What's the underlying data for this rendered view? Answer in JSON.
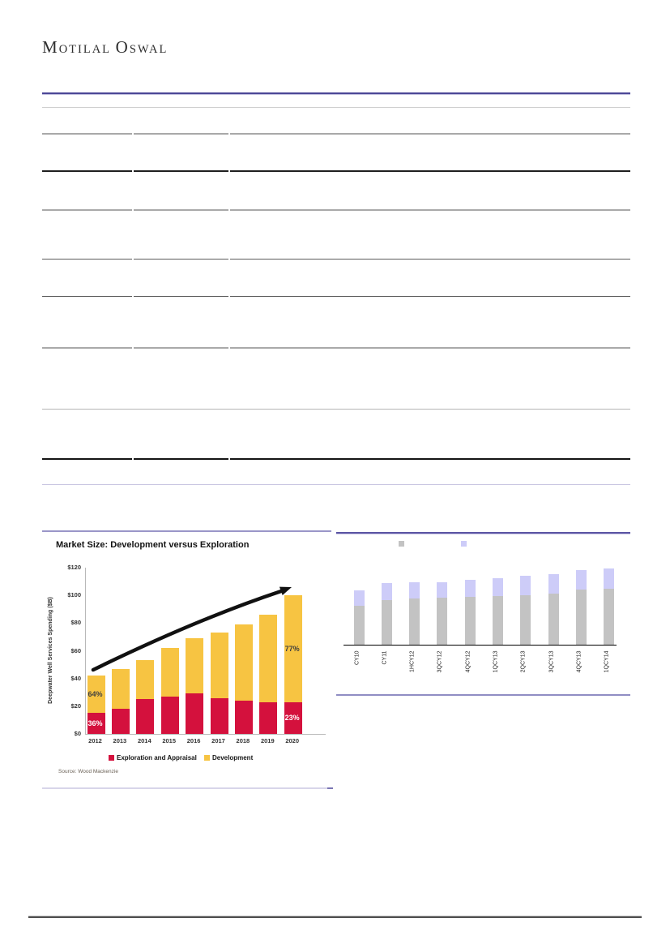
{
  "brand": {
    "name": "Motilal Oswal",
    "word1_initial": "M",
    "word1_rest": "OTILAL",
    "word2_initial": "O",
    "word2_rest": "SWAL"
  },
  "chart_data": [
    {
      "type": "bar",
      "stacked": true,
      "title": "Market Size: Development versus Exploration",
      "xlabel": "",
      "ylabel": "Deepwater Well Services Spending ($B)",
      "categories": [
        "2012",
        "2013",
        "2014",
        "2015",
        "2016",
        "2017",
        "2018",
        "2019",
        "2020"
      ],
      "series": [
        {
          "name": "Exploration and Appraisal",
          "color": "#d4113d",
          "values": [
            15,
            18,
            25,
            27,
            29,
            26,
            24,
            23,
            23
          ]
        },
        {
          "name": "Development",
          "color": "#f7c442",
          "values": [
            27,
            29,
            28,
            35,
            40,
            47,
            55,
            63,
            77
          ]
        }
      ],
      "totals": [
        42,
        47,
        53,
        62,
        69,
        73,
        79,
        86,
        100
      ],
      "ylim": [
        0,
        120
      ],
      "yticks": [
        0,
        20,
        40,
        60,
        80,
        100,
        120
      ],
      "ytick_labels": [
        "$0",
        "$20",
        "$40",
        "$60",
        "$80",
        "$100",
        "$120"
      ],
      "annotations": [
        {
          "category": "2012",
          "series": "Development",
          "text": "64%",
          "color": "#3f3f3f"
        },
        {
          "category": "2012",
          "series": "Exploration and Appraisal",
          "text": "36%",
          "color": "#ffffff"
        },
        {
          "category": "2020",
          "series": "Development",
          "text": "77%",
          "color": "#3f3f3f"
        },
        {
          "category": "2020",
          "series": "Exploration and Appraisal",
          "text": "23%",
          "color": "#ffffff"
        }
      ],
      "trend_arrow": true,
      "legend_position": "bottom",
      "grid": false,
      "source": "Source: Wood Mackenzie"
    },
    {
      "type": "bar",
      "stacked": true,
      "title": "",
      "categories": [
        "CY10",
        "CY11",
        "1HCY12",
        "3QCY12",
        "4QCY12",
        "1QCY13",
        "2QCY13",
        "3QCY13",
        "4QCY13",
        "1QCY14"
      ],
      "series": [
        {
          "name": "",
          "color": "#c3c3c3",
          "values": [
            48,
            55,
            57,
            58,
            59,
            60,
            61,
            63,
            68,
            69
          ]
        },
        {
          "name": "",
          "color": "#cdccf8",
          "values": [
            19,
            21,
            20,
            19,
            21,
            22,
            24,
            24,
            24,
            25
          ]
        }
      ],
      "legend_position": "top",
      "grid": false,
      "x_labels_rotated_90": true
    }
  ]
}
